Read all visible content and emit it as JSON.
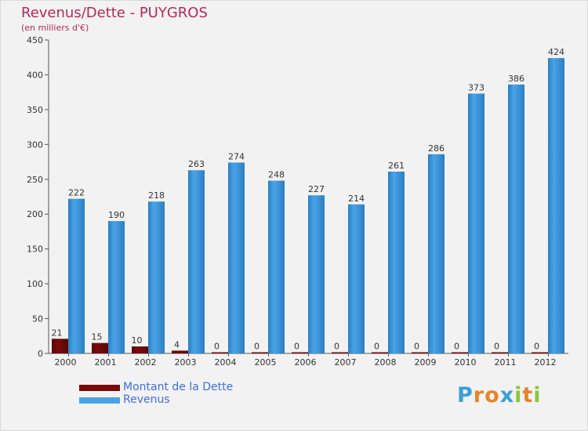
{
  "chart_data": {
    "type": "bar",
    "title": "Revenus/Dette - PUYGROS",
    "subtitle": "(en milliers d'€)",
    "categories": [
      "2000",
      "2001",
      "2002",
      "2003",
      "2004",
      "2005",
      "2006",
      "2007",
      "2008",
      "2009",
      "2010",
      "2011",
      "2012"
    ],
    "series": [
      {
        "name": "Montant de la Dette",
        "color": "#7a0a0a",
        "values": [
          21,
          15,
          10,
          4,
          0,
          0,
          0,
          0,
          0,
          0,
          0,
          0,
          0
        ]
      },
      {
        "name": "Revenus",
        "color": "#4aa3e6",
        "values": [
          222,
          190,
          218,
          263,
          274,
          248,
          227,
          214,
          261,
          286,
          373,
          386,
          424
        ]
      }
    ],
    "ylim": [
      0,
      450
    ],
    "yticks": [
      0,
      50,
      100,
      150,
      200,
      250,
      300,
      350,
      400,
      450
    ],
    "grid": false,
    "legend_position": "bottom-left"
  },
  "logo": {
    "letters": [
      {
        "ch": "P",
        "color": "#3aa0d8"
      },
      {
        "ch": "r",
        "color": "#e8832a"
      },
      {
        "ch": "o",
        "color": "#e8832a"
      },
      {
        "ch": "x",
        "color": "#3aa0d8"
      },
      {
        "ch": "i",
        "color": "#8dc63f"
      },
      {
        "ch": "t",
        "color": "#e8832a"
      },
      {
        "ch": "i",
        "color": "#8dc63f"
      }
    ]
  }
}
